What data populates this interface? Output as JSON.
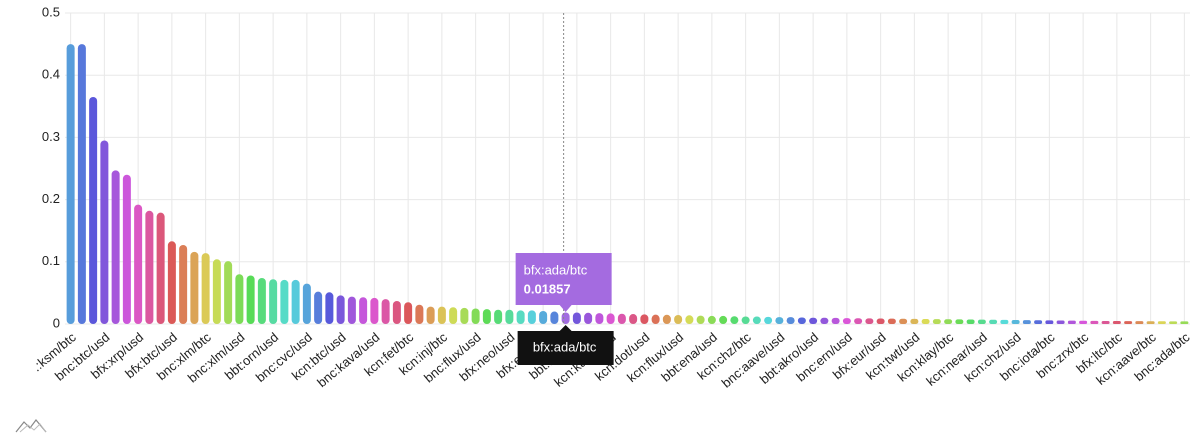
{
  "chart_data": {
    "type": "bar",
    "categories": [
      ".:ksm/btc",
      null,
      null,
      "bnc:btc/usd",
      null,
      null,
      "bfx:xrp/usd",
      null,
      null,
      "bfx:btc/usd",
      null,
      null,
      "bnc:xlm/btc",
      null,
      null,
      "bnc:xlm/usd",
      null,
      null,
      "bbt:orn/usd",
      null,
      null,
      "bnc:cvc/usd",
      null,
      null,
      "kcn:btc/usd",
      null,
      null,
      "bnc:kava/usd",
      null,
      null,
      "kcn:fet/btc",
      null,
      null,
      "kcn:inj/btc",
      null,
      null,
      "bnc:flux/usd",
      null,
      null,
      "bfx:neo/usd",
      null,
      null,
      "bfx:etc/usd",
      null,
      null,
      "bbt:ftm/usd",
      null,
      null,
      "kcn:kava/usd",
      null,
      null,
      "kcn:dot/usd",
      null,
      null,
      "kcn:flux/usd",
      null,
      null,
      "bbt:ena/usd",
      null,
      null,
      "kcn:chz/btc",
      null,
      null,
      "bnc:aave/usd",
      null,
      null,
      "bbt:akro/usd",
      null,
      null,
      "bnc:ern/usd",
      null,
      null,
      "bfx:eur/usd",
      null,
      null,
      "kcn:twt/usd",
      null,
      null,
      "kcn:klay/btc",
      null,
      null,
      "kcn:near/usd",
      null,
      null,
      "kcn:chz/usd",
      null,
      null,
      "bnc:iota/btc",
      null,
      null,
      "bnc:zrx/btc",
      null,
      null,
      "bfx:ltc/btc",
      null,
      null,
      "kcn:aave/btc",
      null,
      null,
      "bnc:ada/btc"
    ],
    "values": [
      0.45,
      0.45,
      0.365,
      0.295,
      0.247,
      0.24,
      0.192,
      0.182,
      0.179,
      0.133,
      0.127,
      0.116,
      0.114,
      0.104,
      0.101,
      0.08,
      0.078,
      0.074,
      0.072,
      0.071,
      0.071,
      0.065,
      0.052,
      0.051,
      0.046,
      0.044,
      0.043,
      0.042,
      0.04,
      0.037,
      0.035,
      0.031,
      0.028,
      0.028,
      0.027,
      0.026,
      0.025,
      0.024,
      0.023,
      0.023,
      0.022,
      0.022,
      0.021,
      0.02,
      0.01857,
      0.0185,
      0.018,
      0.0175,
      0.017,
      0.0165,
      0.016,
      0.0155,
      0.015,
      0.0148,
      0.0145,
      0.014,
      0.0135,
      0.013,
      0.013,
      0.0125,
      0.012,
      0.012,
      0.0115,
      0.011,
      0.011,
      0.0105,
      0.01,
      0.01,
      0.0098,
      0.0095,
      0.0093,
      0.009,
      0.0088,
      0.0086,
      0.0084,
      0.0082,
      0.008,
      0.0078,
      0.0076,
      0.0074,
      0.0072,
      0.007,
      0.0068,
      0.0066,
      0.0064,
      0.0062,
      0.006,
      0.0058,
      0.0056,
      0.0054,
      0.0052,
      0.005,
      0.0049,
      0.0048,
      0.0047,
      0.0046,
      0.0045,
      0.0044,
      0.0043,
      0.0042
    ],
    "colors": [
      "hsl(208,65%,60%)",
      "hsl(225,65%,60%)",
      "hsl(242,65%,60%)",
      "hsl(259,65%,60%)",
      "hsl(276,65%,60%)",
      "hsl(293,65%,60%)",
      "hsl(310,65%,60%)",
      "hsl(327,65%,60%)",
      "hsl(344,65%,60%)",
      "hsl(1,65%,60%)",
      "hsl(18,65%,60%)",
      "hsl(35,65%,60%)",
      "hsl(52,65%,60%)",
      "hsl(69,65%,60%)",
      "hsl(86,65%,60%)",
      "hsl(103,65%,60%)",
      "hsl(120,65%,60%)",
      "hsl(137,65%,60%)",
      "hsl(154,65%,60%)",
      "hsl(171,65%,60%)",
      "hsl(188,65%,60%)",
      "hsl(205,65%,60%)",
      "hsl(222,65%,60%)",
      "hsl(239,65%,60%)",
      "hsl(256,65%,60%)",
      "hsl(273,65%,60%)",
      "hsl(290,65%,60%)",
      "hsl(307,65%,60%)",
      "hsl(324,65%,60%)",
      "hsl(341,65%,60%)",
      "hsl(358,65%,60%)",
      "hsl(15,65%,60%)",
      "hsl(32,65%,60%)",
      "hsl(49,65%,60%)",
      "hsl(66,65%,60%)",
      "hsl(83,65%,60%)",
      "hsl(100,65%,60%)",
      "hsl(117,65%,60%)",
      "hsl(134,65%,60%)",
      "hsl(151,65%,60%)",
      "hsl(168,65%,60%)",
      "hsl(185,65%,60%)",
      "hsl(202,65%,60%)",
      "hsl(219,65%,60%)",
      "hsl(268,65%,65%)",
      "hsl(253,65%,60%)",
      "hsl(270,65%,60%)",
      "hsl(287,65%,60%)",
      "hsl(304,65%,60%)",
      "hsl(321,65%,60%)",
      "hsl(338,65%,60%)",
      "hsl(355,65%,60%)",
      "hsl(12,65%,60%)",
      "hsl(29,65%,60%)",
      "hsl(46,65%,60%)",
      "hsl(63,65%,60%)",
      "hsl(80,65%,60%)",
      "hsl(97,65%,60%)",
      "hsl(114,65%,60%)",
      "hsl(131,65%,60%)",
      "hsl(148,65%,60%)",
      "hsl(165,65%,60%)",
      "hsl(182,65%,60%)",
      "hsl(199,65%,60%)",
      "hsl(216,65%,60%)",
      "hsl(233,65%,60%)",
      "hsl(250,65%,60%)",
      "hsl(267,65%,60%)",
      "hsl(284,65%,60%)",
      "hsl(301,65%,60%)",
      "hsl(318,65%,60%)",
      "hsl(335,65%,60%)",
      "hsl(352,65%,60%)",
      "hsl(9,65%,60%)",
      "hsl(26,65%,60%)",
      "hsl(43,65%,60%)",
      "hsl(60,65%,60%)",
      "hsl(77,65%,60%)",
      "hsl(94,65%,60%)",
      "hsl(111,65%,60%)",
      "hsl(128,65%,60%)",
      "hsl(145,65%,60%)",
      "hsl(162,65%,60%)",
      "hsl(179,65%,60%)",
      "hsl(196,65%,60%)",
      "hsl(213,65%,60%)",
      "hsl(230,65%,60%)",
      "hsl(247,65%,60%)",
      "hsl(264,65%,60%)",
      "hsl(281,65%,60%)",
      "hsl(298,65%,60%)",
      "hsl(315,65%,60%)",
      "hsl(332,65%,60%)",
      "hsl(349,65%,60%)",
      "hsl(6,65%,60%)",
      "hsl(23,65%,60%)",
      "hsl(40,65%,60%)",
      "hsl(57,65%,60%)",
      "hsl(74,65%,60%)",
      "hsl(91,65%,60%)"
    ],
    "ylim": [
      0,
      0.5
    ],
    "yticks": [
      0,
      0.1,
      0.2,
      0.3,
      0.4,
      0.5
    ],
    "grid": true,
    "tooltip": {
      "label": "bfx:ada/btc",
      "value": 0.01857,
      "axis_label": "bfx:ada/btc"
    }
  }
}
